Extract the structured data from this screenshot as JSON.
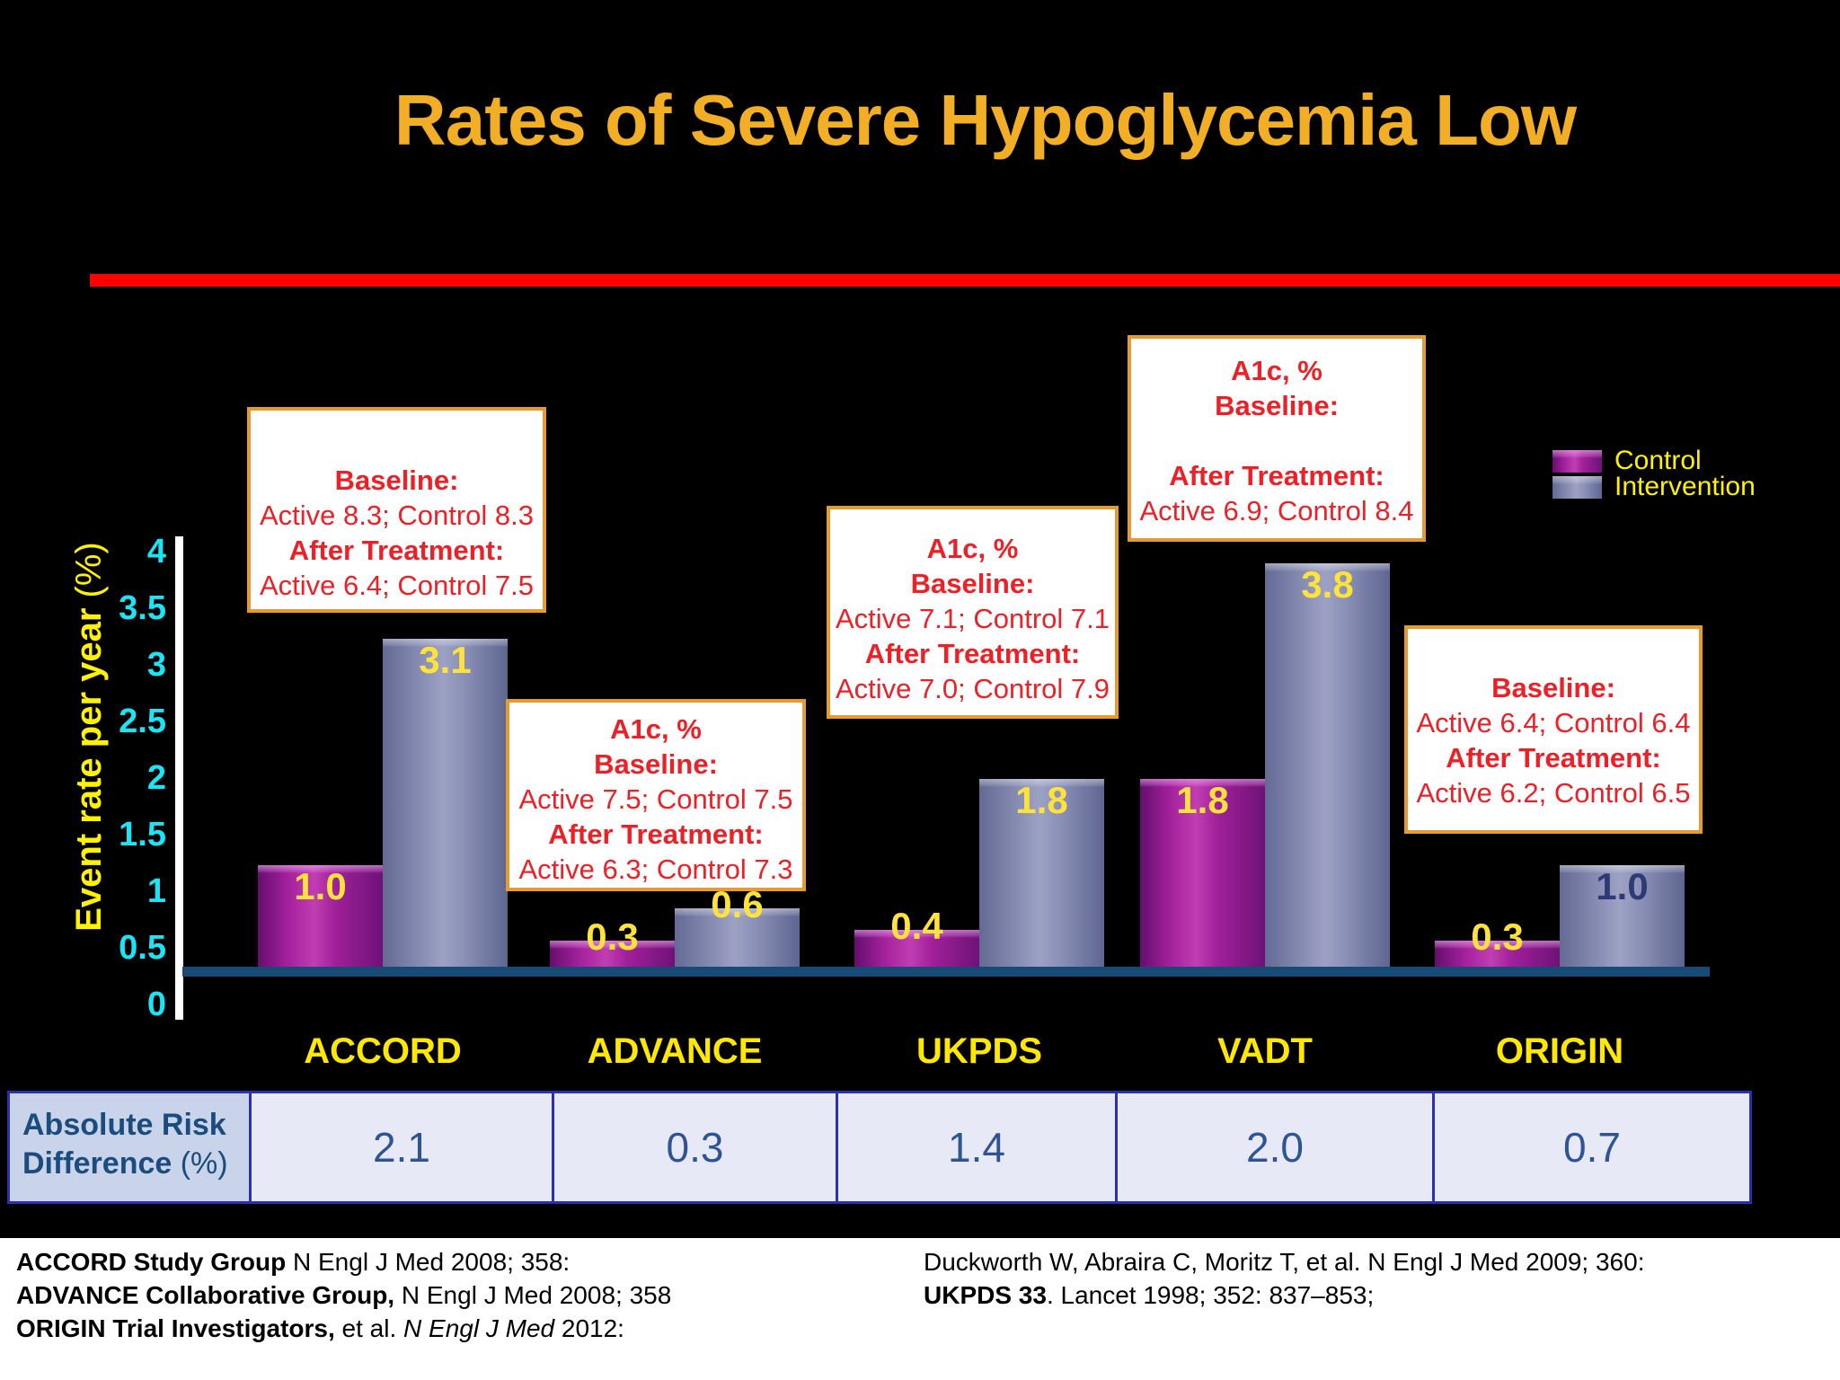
{
  "title": "Rates of Severe Hypoglycemia Low",
  "y_axis": {
    "label": "Event rate per year",
    "unit": " (%)",
    "ticks": [
      "4",
      "3.5",
      "3",
      "2.5",
      "2",
      "1.5",
      "1",
      "0.5",
      "0"
    ]
  },
  "legend": [
    {
      "name": "Control"
    },
    {
      "name": "Intervention"
    }
  ],
  "colors": {
    "title": "#F2AF25",
    "divider": "#FF0000",
    "tick_labels": "#1BE4F5",
    "axis_label": "#FFF200",
    "category_labels": "#FFE800",
    "bar_value_labels": "#FFE23A",
    "origin_intervention_label": "#2F3A75",
    "control_bar": "#A5229E",
    "intervention_bar": "#8A90B6",
    "callout_text": "#EC2027",
    "callout_border": "#E79A2E",
    "table_border": "#2A31B0",
    "table_text": "#2F5496",
    "floor": "#174A75"
  },
  "chart_data": {
    "type": "bar",
    "categories": [
      "ACCORD",
      "ADVANCE",
      "UKPDS",
      "VADT",
      "ORIGIN"
    ],
    "series": [
      {
        "name": "Control",
        "values": [
          1.0,
          0.3,
          0.4,
          1.8,
          0.3
        ]
      },
      {
        "name": "Intervention",
        "values": [
          3.1,
          0.6,
          1.8,
          3.8,
          1.0
        ],
        "label_colors": [
          "yellow",
          "yellow",
          "yellow",
          "yellow",
          "navy"
        ]
      }
    ],
    "title": "Rates of Severe Hypoglycemia Low",
    "xlabel": "",
    "ylabel": "Event rate per year (%)",
    "ylim": [
      0,
      4
    ],
    "tick_step": 0.5,
    "grid": false,
    "legend_position": "top-right"
  },
  "callouts": [
    {
      "study": "ACCORD",
      "lines": [
        {
          "t": "Baseline:",
          "b": true
        },
        {
          "t": "Active 8.3; Control 8.3"
        },
        {
          "t": "After Treatment:",
          "b": true
        },
        {
          "t": "Active 6.4; Control 7.5"
        }
      ]
    },
    {
      "study": "ADVANCE",
      "lines": [
        {
          "t": "A1c, %",
          "b": true
        },
        {
          "t": "Baseline:",
          "b": true
        },
        {
          "t": "Active 7.5; Control 7.5"
        },
        {
          "t": "After Treatment:",
          "b": true
        },
        {
          "t": "Active 6.3; Control 7.3"
        }
      ]
    },
    {
      "study": "UKPDS",
      "lines": [
        {
          "t": "A1c, %",
          "b": true
        },
        {
          "t": "Baseline:",
          "b": true
        },
        {
          "t": "Active 7.1; Control 7.1"
        },
        {
          "t": "After Treatment:",
          "b": true
        },
        {
          "t": "Active 7.0; Control 7.9"
        }
      ]
    },
    {
      "study": "VADT",
      "lines": [
        {
          "t": "A1c, %",
          "b": true
        },
        {
          "t": "Baseline:",
          "b": true
        },
        {
          "t": ""
        },
        {
          "t": "After Treatment:",
          "b": true
        },
        {
          "t": "Active 6.9; Control 8.4"
        }
      ]
    },
    {
      "study": "ORIGIN",
      "lines": [
        {
          "t": "Baseline:",
          "b": true
        },
        {
          "t": "Active 6.4; Control 6.4"
        },
        {
          "t": "After Treatment:",
          "b": true
        },
        {
          "t": "Active 6.2; Control 6.5"
        }
      ]
    }
  ],
  "table": {
    "row_header": {
      "line1": "Absolute Risk",
      "line2": "Difference",
      "unit": " (%)"
    },
    "values": [
      "2.1",
      "0.3",
      "1.4",
      "2.0",
      "0.7"
    ]
  },
  "references": {
    "left": [
      [
        {
          "t": "ACCORD Study Group",
          "b": true
        },
        {
          "t": " N Engl J Med 2008; 358:"
        }
      ],
      [
        {
          "t": "ADVANCE Collaborative Group,",
          "b": true
        },
        {
          "t": " N Engl J Med 2008; 358"
        }
      ],
      [
        {
          "t": "ORIGIN Trial Investigators,",
          "b": true
        },
        {
          "t": " et al. "
        },
        {
          "t": "N Engl J Med",
          "i": true
        },
        {
          "t": " 2012:"
        }
      ]
    ],
    "right": [
      [
        {
          "t": "Duckworth W, Abraira C, Moritz T, et al. N Engl J Med 2009; 360:"
        }
      ],
      [
        {
          "t": "UKPDS 33",
          "b": true
        },
        {
          "t": ". Lancet 1998; 352: 837–853;"
        }
      ]
    ]
  }
}
